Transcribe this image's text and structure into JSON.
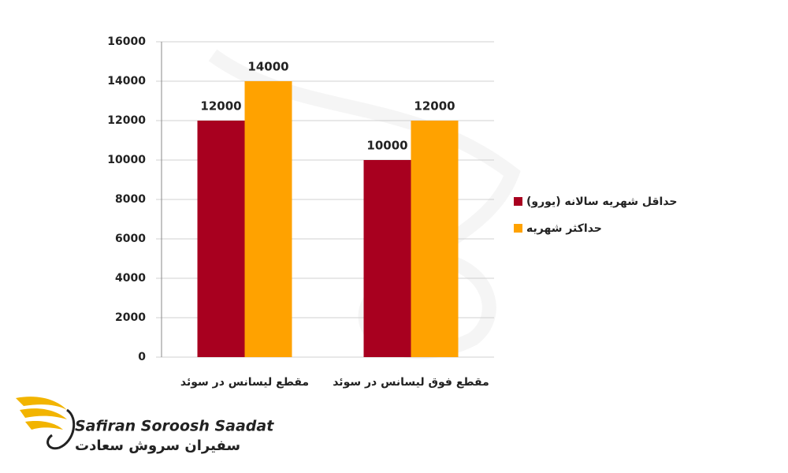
{
  "chart_data": {
    "type": "bar",
    "categories": [
      "مقطع لیسانس در سوئد",
      "مقطع فوق لیسانس در سوئد"
    ],
    "series": [
      {
        "name": "حداقل شهریه سالانه (یورو)",
        "color": "#a8001f",
        "values": [
          12000,
          10000
        ]
      },
      {
        "name": "حداکثر شهریه",
        "color": "#ffa200",
        "values": [
          14000,
          12000
        ]
      }
    ],
    "ylim": [
      0,
      16000
    ],
    "yticks": [
      0,
      2000,
      4000,
      6000,
      8000,
      10000,
      12000,
      14000,
      16000
    ],
    "grid": true,
    "legend": "right"
  },
  "logo": {
    "name": "Safiran Soroosh Saadat",
    "name_fa": "سفیران سروش سعادت"
  }
}
